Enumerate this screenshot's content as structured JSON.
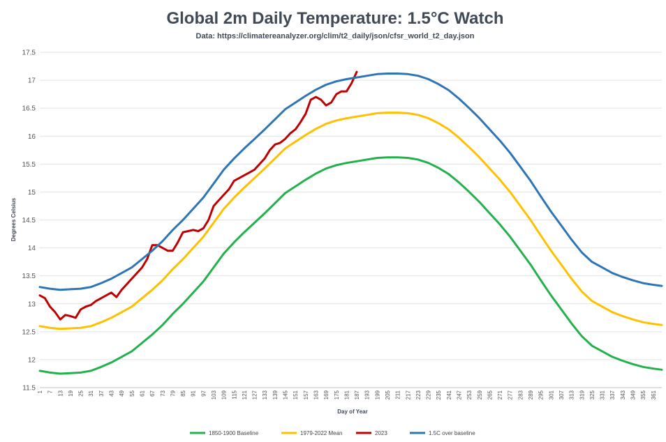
{
  "chart_data": {
    "type": "line",
    "title": "Global 2m Daily Temperature: 1.5°C Watch",
    "subtitle": "Data: https://climatereanalyzer.org/clim/t2_daily/json/cfsr_world_t2_day.json",
    "xlabel": "Day of Year",
    "ylabel": "Degrees Celsius",
    "xlim": [
      1,
      366
    ],
    "ylim": [
      11.5,
      17.5
    ],
    "x_tick_labels": [
      1,
      7,
      13,
      19,
      25,
      31,
      37,
      43,
      49,
      55,
      61,
      67,
      73,
      79,
      85,
      91,
      97,
      103,
      109,
      115,
      121,
      127,
      133,
      139,
      145,
      151,
      157,
      163,
      169,
      175,
      181,
      187,
      193,
      199,
      205,
      211,
      217,
      223,
      229,
      235,
      241,
      247,
      253,
      259,
      265,
      271,
      277,
      283,
      289,
      295,
      301,
      307,
      313,
      319,
      325,
      331,
      337,
      343,
      349,
      355,
      361
    ],
    "y_tick_labels": [
      "11.5",
      "12",
      "12.5",
      "13",
      "13.5",
      "14",
      "14.5",
      "15",
      "15.5",
      "16",
      "16.5",
      "17",
      "17.5"
    ],
    "grid": "horizontal",
    "legend_position": "bottom",
    "series": [
      {
        "name": "1850-1900 Baseline",
        "color": "#22b14c",
        "x": [
          1,
          7,
          13,
          19,
          25,
          31,
          37,
          43,
          49,
          55,
          61,
          67,
          73,
          79,
          85,
          91,
          97,
          103,
          109,
          115,
          121,
          127,
          133,
          139,
          145,
          151,
          157,
          163,
          169,
          175,
          181,
          187,
          193,
          199,
          205,
          211,
          217,
          223,
          229,
          235,
          241,
          247,
          253,
          259,
          265,
          271,
          277,
          283,
          289,
          295,
          301,
          307,
          313,
          319,
          325,
          331,
          337,
          343,
          349,
          355,
          361,
          366
        ],
        "values": [
          11.8,
          11.77,
          11.75,
          11.76,
          11.77,
          11.8,
          11.87,
          11.95,
          12.05,
          12.15,
          12.3,
          12.45,
          12.62,
          12.82,
          13.0,
          13.2,
          13.4,
          13.65,
          13.9,
          14.1,
          14.28,
          14.45,
          14.62,
          14.8,
          14.98,
          15.1,
          15.22,
          15.33,
          15.42,
          15.48,
          15.52,
          15.55,
          15.58,
          15.61,
          15.62,
          15.62,
          15.61,
          15.58,
          15.52,
          15.43,
          15.32,
          15.17,
          15.0,
          14.82,
          14.62,
          14.42,
          14.2,
          13.95,
          13.7,
          13.42,
          13.15,
          12.9,
          12.65,
          12.42,
          12.25,
          12.15,
          12.05,
          11.98,
          11.92,
          11.87,
          11.84,
          11.82
        ]
      },
      {
        "name": "1979-2022 Mean",
        "color": "#ffc000",
        "x": [
          1,
          7,
          13,
          19,
          25,
          31,
          37,
          43,
          49,
          55,
          61,
          67,
          73,
          79,
          85,
          91,
          97,
          103,
          109,
          115,
          121,
          127,
          133,
          139,
          145,
          151,
          157,
          163,
          169,
          175,
          181,
          187,
          193,
          199,
          205,
          211,
          217,
          223,
          229,
          235,
          241,
          247,
          253,
          259,
          265,
          271,
          277,
          283,
          289,
          295,
          301,
          307,
          313,
          319,
          325,
          331,
          337,
          343,
          349,
          355,
          361,
          366
        ],
        "values": [
          12.6,
          12.57,
          12.55,
          12.56,
          12.57,
          12.6,
          12.67,
          12.75,
          12.85,
          12.95,
          13.1,
          13.25,
          13.42,
          13.62,
          13.8,
          14.0,
          14.2,
          14.45,
          14.7,
          14.9,
          15.08,
          15.25,
          15.42,
          15.6,
          15.78,
          15.9,
          16.02,
          16.13,
          16.22,
          16.28,
          16.32,
          16.35,
          16.38,
          16.41,
          16.42,
          16.42,
          16.41,
          16.38,
          16.32,
          16.23,
          16.12,
          15.97,
          15.8,
          15.62,
          15.42,
          15.22,
          15.0,
          14.75,
          14.5,
          14.22,
          13.95,
          13.7,
          13.45,
          13.22,
          13.05,
          12.95,
          12.85,
          12.78,
          12.72,
          12.67,
          12.64,
          12.62
        ]
      },
      {
        "name": "2023",
        "color": "#c00000",
        "x": [
          1,
          4,
          7,
          10,
          13,
          16,
          19,
          22,
          25,
          28,
          31,
          34,
          37,
          40,
          43,
          46,
          49,
          52,
          55,
          58,
          61,
          64,
          67,
          70,
          73,
          76,
          79,
          82,
          85,
          88,
          91,
          94,
          97,
          100,
          103,
          106,
          109,
          112,
          115,
          118,
          121,
          124,
          127,
          130,
          133,
          136,
          139,
          142,
          145,
          148,
          151,
          154,
          157,
          160,
          163,
          166,
          169,
          172,
          175,
          178,
          181,
          184,
          187
        ],
        "values": [
          13.15,
          13.1,
          12.95,
          12.85,
          12.72,
          12.8,
          12.78,
          12.75,
          12.9,
          12.95,
          12.98,
          13.05,
          13.1,
          13.15,
          13.2,
          13.12,
          13.25,
          13.35,
          13.45,
          13.55,
          13.65,
          13.8,
          14.05,
          14.05,
          14.0,
          13.95,
          13.95,
          14.1,
          14.28,
          14.3,
          14.32,
          14.3,
          14.35,
          14.5,
          14.75,
          14.85,
          14.95,
          15.05,
          15.2,
          15.25,
          15.3,
          15.35,
          15.4,
          15.5,
          15.6,
          15.75,
          15.85,
          15.88,
          15.95,
          16.05,
          16.12,
          16.25,
          16.4,
          16.65,
          16.7,
          16.65,
          16.55,
          16.6,
          16.75,
          16.8,
          16.8,
          16.95,
          17.15
        ]
      },
      {
        "name": "1.5C over baseline",
        "color": "#2e75b6",
        "x": [
          1,
          7,
          13,
          19,
          25,
          31,
          37,
          43,
          49,
          55,
          61,
          67,
          73,
          79,
          85,
          91,
          97,
          103,
          109,
          115,
          121,
          127,
          133,
          139,
          145,
          151,
          157,
          163,
          169,
          175,
          181,
          187,
          193,
          199,
          205,
          211,
          217,
          223,
          229,
          235,
          241,
          247,
          253,
          259,
          265,
          271,
          277,
          283,
          289,
          295,
          301,
          307,
          313,
          319,
          325,
          331,
          337,
          343,
          349,
          355,
          361,
          366
        ],
        "values": [
          13.3,
          13.27,
          13.25,
          13.26,
          13.27,
          13.3,
          13.37,
          13.45,
          13.55,
          13.65,
          13.8,
          13.95,
          14.12,
          14.32,
          14.5,
          14.7,
          14.9,
          15.15,
          15.4,
          15.6,
          15.78,
          15.95,
          16.12,
          16.3,
          16.48,
          16.6,
          16.72,
          16.83,
          16.92,
          16.98,
          17.02,
          17.05,
          17.08,
          17.11,
          17.12,
          17.12,
          17.11,
          17.08,
          17.02,
          16.93,
          16.82,
          16.67,
          16.5,
          16.32,
          16.12,
          15.92,
          15.7,
          15.45,
          15.2,
          14.92,
          14.65,
          14.4,
          14.15,
          13.92,
          13.75,
          13.65,
          13.55,
          13.48,
          13.42,
          13.37,
          13.34,
          13.32
        ]
      }
    ]
  }
}
